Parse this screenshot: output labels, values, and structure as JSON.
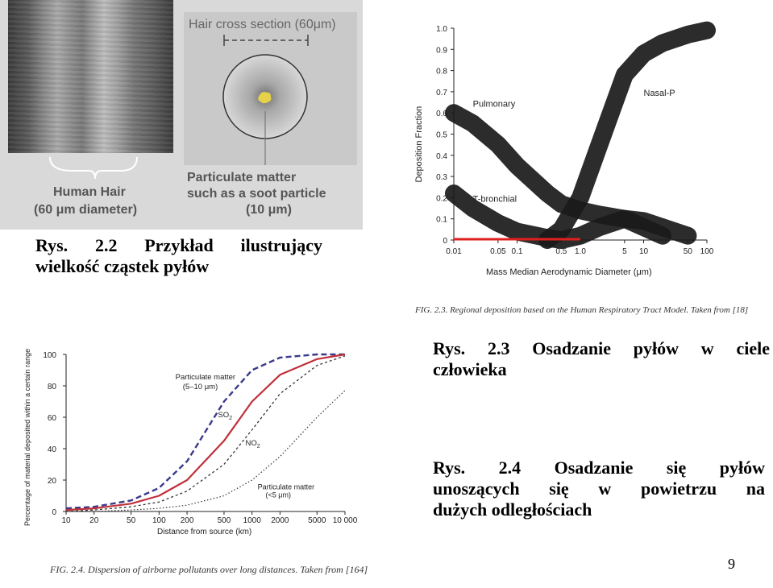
{
  "figure_hair": {
    "cross_section_title": "Hair cross section (60μm)",
    "human_hair_label": "Human Hair",
    "human_hair_size": "(60 μm diameter)",
    "particle_label_line1": "Particulate matter",
    "particle_label_line2": "such as a soot particle",
    "particle_size": "(10 μm)",
    "caption_line1": "Rys.  2.2  Przykład  ilustrujący",
    "caption_line2": "wielkość cząstek pyłów",
    "colors": {
      "particle": "#e6d24a",
      "background": "#d9d9d9"
    }
  },
  "figure_deposition": {
    "caption_line1": "Rys.  2.3  Osadzanie  pyłów  w  ciele",
    "caption_line2": "człowieka",
    "source_note": "FIG. 2.3. Regional deposition based on the Human Respiratory Tract Model. Taken from [18]",
    "chart_data": {
      "type": "area",
      "ylabel": "Deposition Fraction",
      "xlabel": "Mass Median Aerodynamic Diameter (μm)",
      "x_scale": "log",
      "xlim": [
        0.01,
        100
      ],
      "ylim": [
        0,
        1.0
      ],
      "x_ticks": [
        "0.01",
        "0.05",
        "0.1",
        "0.5",
        "1.0",
        "5",
        "10",
        "50",
        "100"
      ],
      "y_ticks": [
        "0",
        "0.1",
        "0.2",
        "0.3",
        "0.4",
        "0.5",
        "0.6",
        "0.7",
        "0.8",
        "0.9",
        "1.0"
      ],
      "series": [
        {
          "name": "Pulmonary",
          "x": [
            0.01,
            0.02,
            0.05,
            0.1,
            0.3,
            0.5,
            1,
            2,
            5,
            10,
            20
          ],
          "y": [
            0.6,
            0.55,
            0.45,
            0.35,
            0.22,
            0.17,
            0.14,
            0.12,
            0.1,
            0.06,
            0.02
          ]
        },
        {
          "name": "T-bronchial",
          "x": [
            0.01,
            0.02,
            0.05,
            0.1,
            0.3,
            0.5,
            1,
            2,
            5,
            10,
            20,
            50
          ],
          "y": [
            0.22,
            0.15,
            0.08,
            0.04,
            0.01,
            0.0,
            0.02,
            0.06,
            0.1,
            0.09,
            0.06,
            0.02
          ]
        },
        {
          "name": "Nasal-P",
          "x": [
            0.3,
            0.5,
            1,
            2,
            5,
            10,
            20,
            50,
            100
          ],
          "y": [
            0.0,
            0.05,
            0.2,
            0.45,
            0.78,
            0.88,
            0.93,
            0.97,
            0.99
          ]
        }
      ],
      "highlight_x_range": [
        0.01,
        1.0
      ],
      "colors": {
        "band": "#1a1a1a",
        "highlight": "#e02020"
      }
    }
  },
  "figure_dispersion": {
    "caption_line1": "Rys.  2.4  Osadzanie  się  pyłów",
    "caption_line2": "unoszących  się  w  powietrzu  na",
    "caption_line3": "dużych odległościach",
    "source_note": "FIG. 2.4. Dispersion of airborne pollutants over long distances. Taken from [164]",
    "chart_data": {
      "type": "line",
      "ylabel": "Percentage of material deposited within a certain range",
      "xlabel": "Distance from source (km)",
      "x_scale": "log",
      "xlim": [
        10,
        10000
      ],
      "ylim": [
        0,
        100
      ],
      "x_ticks": [
        "10",
        "20",
        "50",
        "100",
        "200",
        "500",
        "1000",
        "2000",
        "5000",
        "10 000"
      ],
      "y_ticks": [
        "0",
        "20",
        "40",
        "60",
        "80",
        "100"
      ],
      "series": [
        {
          "name": "Particulate matter (5–10 μm)",
          "style": "dashed",
          "x": [
            10,
            20,
            50,
            100,
            200,
            500,
            1000,
            2000,
            5000,
            10000
          ],
          "y": [
            2,
            3,
            7,
            15,
            32,
            70,
            90,
            98,
            100,
            100
          ]
        },
        {
          "name": "SO2",
          "style": "solid",
          "x": [
            10,
            20,
            50,
            100,
            200,
            500,
            1000,
            2000,
            5000,
            10000
          ],
          "y": [
            1,
            2,
            5,
            10,
            20,
            45,
            70,
            87,
            97,
            100
          ]
        },
        {
          "name": "NO2",
          "style": "dotted",
          "x": [
            10,
            20,
            50,
            100,
            200,
            500,
            1000,
            2000,
            5000,
            10000
          ],
          "y": [
            0,
            1,
            3,
            6,
            13,
            30,
            52,
            75,
            93,
            99
          ]
        },
        {
          "name": "Particulate matter (<5 μm)",
          "style": "fine-dotted",
          "x": [
            10,
            20,
            50,
            100,
            200,
            500,
            1000,
            2000,
            5000,
            10000
          ],
          "y": [
            0,
            0,
            1,
            2,
            4,
            10,
            20,
            35,
            60,
            77
          ]
        }
      ],
      "labels": {
        "pm_large_line1": "Particulate matter",
        "pm_large_line2": "(5–10 μm)",
        "so2": "SO",
        "so2_sub": "2",
        "no2": "NO",
        "no2_sub": "2",
        "pm_small_line1": "Particulate matter",
        "pm_small_line2": "(<5 μm)"
      },
      "colors": {
        "dashed": "#3a3a8c",
        "so2": "#c0303a",
        "dotted": "#333333"
      }
    }
  },
  "page_number": "9"
}
